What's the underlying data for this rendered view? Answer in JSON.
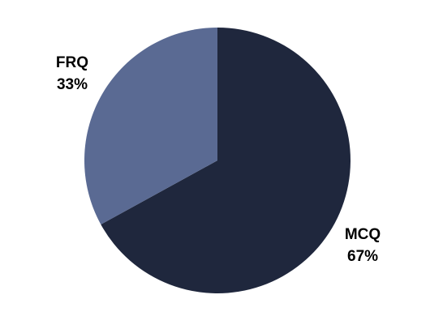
{
  "chart_data": {
    "type": "pie",
    "categories": [
      "MCQ",
      "FRQ"
    ],
    "values": [
      67,
      33
    ],
    "value_labels": [
      "67%",
      "33%"
    ],
    "colors": [
      "#1f273d",
      "#5a6a93"
    ]
  }
}
